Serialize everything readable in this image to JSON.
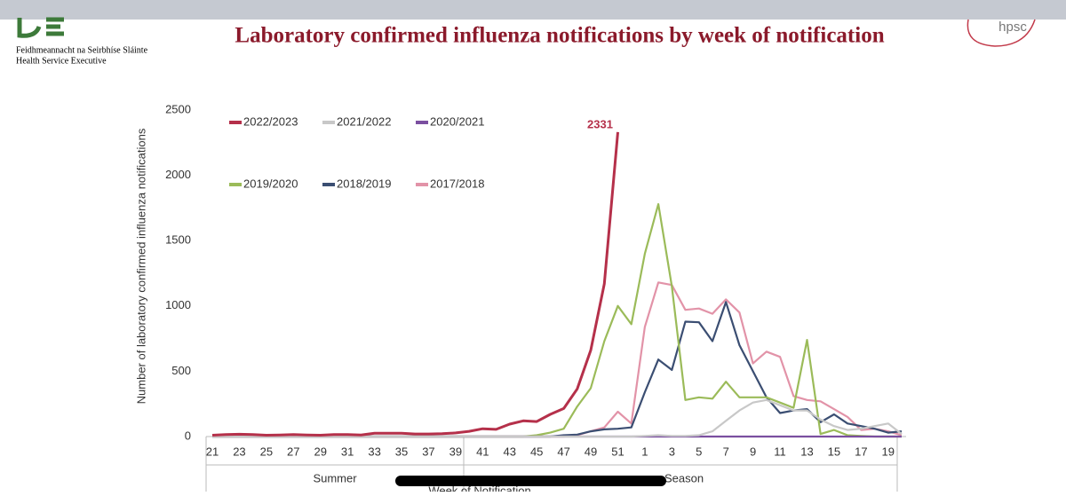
{
  "header": {
    "org_line1": "Feidhmeannacht na Seirbhíse Sláinte",
    "org_line2": "Health Service Executive",
    "logo_right": "hpsc"
  },
  "chart_data": {
    "type": "line",
    "title": "Laboratory confirmed influenza notifications by week of notification",
    "y_label": "Number of laboratory confirmed influenza notifications",
    "x_label": "Week of Notification",
    "x_groups": [
      "Summer",
      "Season"
    ],
    "categories": [
      "21",
      null,
      "23",
      null,
      "25",
      null,
      "27",
      null,
      "29",
      null,
      "31",
      null,
      "33",
      null,
      "35",
      null,
      "37",
      null,
      "39",
      null,
      "41",
      null,
      "43",
      null,
      "45",
      null,
      "47",
      null,
      "49",
      null,
      "51",
      null,
      "1",
      null,
      "3",
      null,
      "5",
      null,
      "7",
      null,
      "9",
      null,
      "11",
      null,
      "13",
      null,
      "15",
      null,
      "17",
      null,
      "19",
      null
    ],
    "ylim": [
      0,
      2500
    ],
    "yticks": [
      0,
      500,
      1000,
      1500,
      2000,
      2500
    ],
    "series": [
      {
        "name": "2022/2023",
        "color": "#b5304a",
        "values": [
          10,
          15,
          18,
          15,
          10,
          12,
          15,
          12,
          10,
          15,
          15,
          12,
          25,
          25,
          25,
          20,
          20,
          22,
          28,
          40,
          60,
          55,
          95,
          120,
          115,
          170,
          215,
          365,
          660,
          1170,
          2331,
          null,
          null,
          null,
          null,
          null,
          null,
          null,
          null,
          null,
          null,
          null,
          null,
          null,
          null,
          null,
          null,
          null,
          null,
          null,
          null,
          null
        ]
      },
      {
        "name": "2021/2022",
        "color": "#c8c8c8",
        "values": [
          0,
          0,
          0,
          0,
          0,
          0,
          0,
          0,
          0,
          0,
          0,
          0,
          0,
          0,
          0,
          0,
          0,
          0,
          0,
          0,
          0,
          0,
          0,
          0,
          0,
          0,
          0,
          0,
          0,
          0,
          0,
          0,
          5,
          10,
          5,
          5,
          10,
          40,
          120,
          200,
          260,
          280,
          240,
          200,
          200,
          130,
          80,
          50,
          60,
          80,
          100,
          20
        ]
      },
      {
        "name": "2020/2021",
        "color": "#7b4fa0",
        "values": [
          0,
          0,
          0,
          0,
          0,
          0,
          0,
          0,
          0,
          0,
          0,
          0,
          0,
          0,
          0,
          0,
          0,
          0,
          0,
          0,
          0,
          0,
          0,
          0,
          0,
          0,
          0,
          0,
          0,
          0,
          0,
          0,
          0,
          0,
          0,
          0,
          0,
          0,
          0,
          0,
          0,
          0,
          0,
          0,
          0,
          0,
          0,
          0,
          0,
          0,
          0,
          0
        ]
      },
      {
        "name": "2019/2020",
        "color": "#9bbb59",
        "values": [
          0,
          0,
          0,
          0,
          0,
          0,
          0,
          0,
          0,
          0,
          0,
          0,
          0,
          0,
          0,
          0,
          0,
          0,
          0,
          0,
          0,
          0,
          0,
          0,
          10,
          30,
          60,
          230,
          370,
          730,
          1000,
          860,
          1400,
          1780,
          1150,
          280,
          300,
          290,
          420,
          300,
          300,
          300,
          260,
          220,
          740,
          20,
          50,
          10,
          5,
          0,
          0,
          0
        ]
      },
      {
        "name": "2018/2019",
        "color": "#3b4e72",
        "values": [
          0,
          0,
          0,
          0,
          0,
          0,
          0,
          0,
          0,
          0,
          0,
          0,
          0,
          0,
          0,
          0,
          0,
          0,
          0,
          0,
          0,
          0,
          0,
          0,
          0,
          0,
          10,
          15,
          40,
          55,
          60,
          70,
          340,
          590,
          510,
          880,
          875,
          730,
          1030,
          700,
          500,
          300,
          180,
          200,
          210,
          110,
          170,
          100,
          80,
          60,
          30,
          40
        ]
      },
      {
        "name": "2017/2018",
        "color": "#e293a8",
        "values": [
          0,
          0,
          0,
          0,
          0,
          0,
          0,
          0,
          0,
          0,
          0,
          0,
          0,
          0,
          0,
          0,
          0,
          0,
          0,
          0,
          0,
          0,
          0,
          0,
          0,
          0,
          0,
          10,
          40,
          70,
          190,
          100,
          840,
          1180,
          1160,
          970,
          980,
          940,
          1050,
          950,
          560,
          650,
          610,
          310,
          280,
          270,
          210,
          150,
          50,
          60,
          40,
          10
        ]
      }
    ]
  }
}
